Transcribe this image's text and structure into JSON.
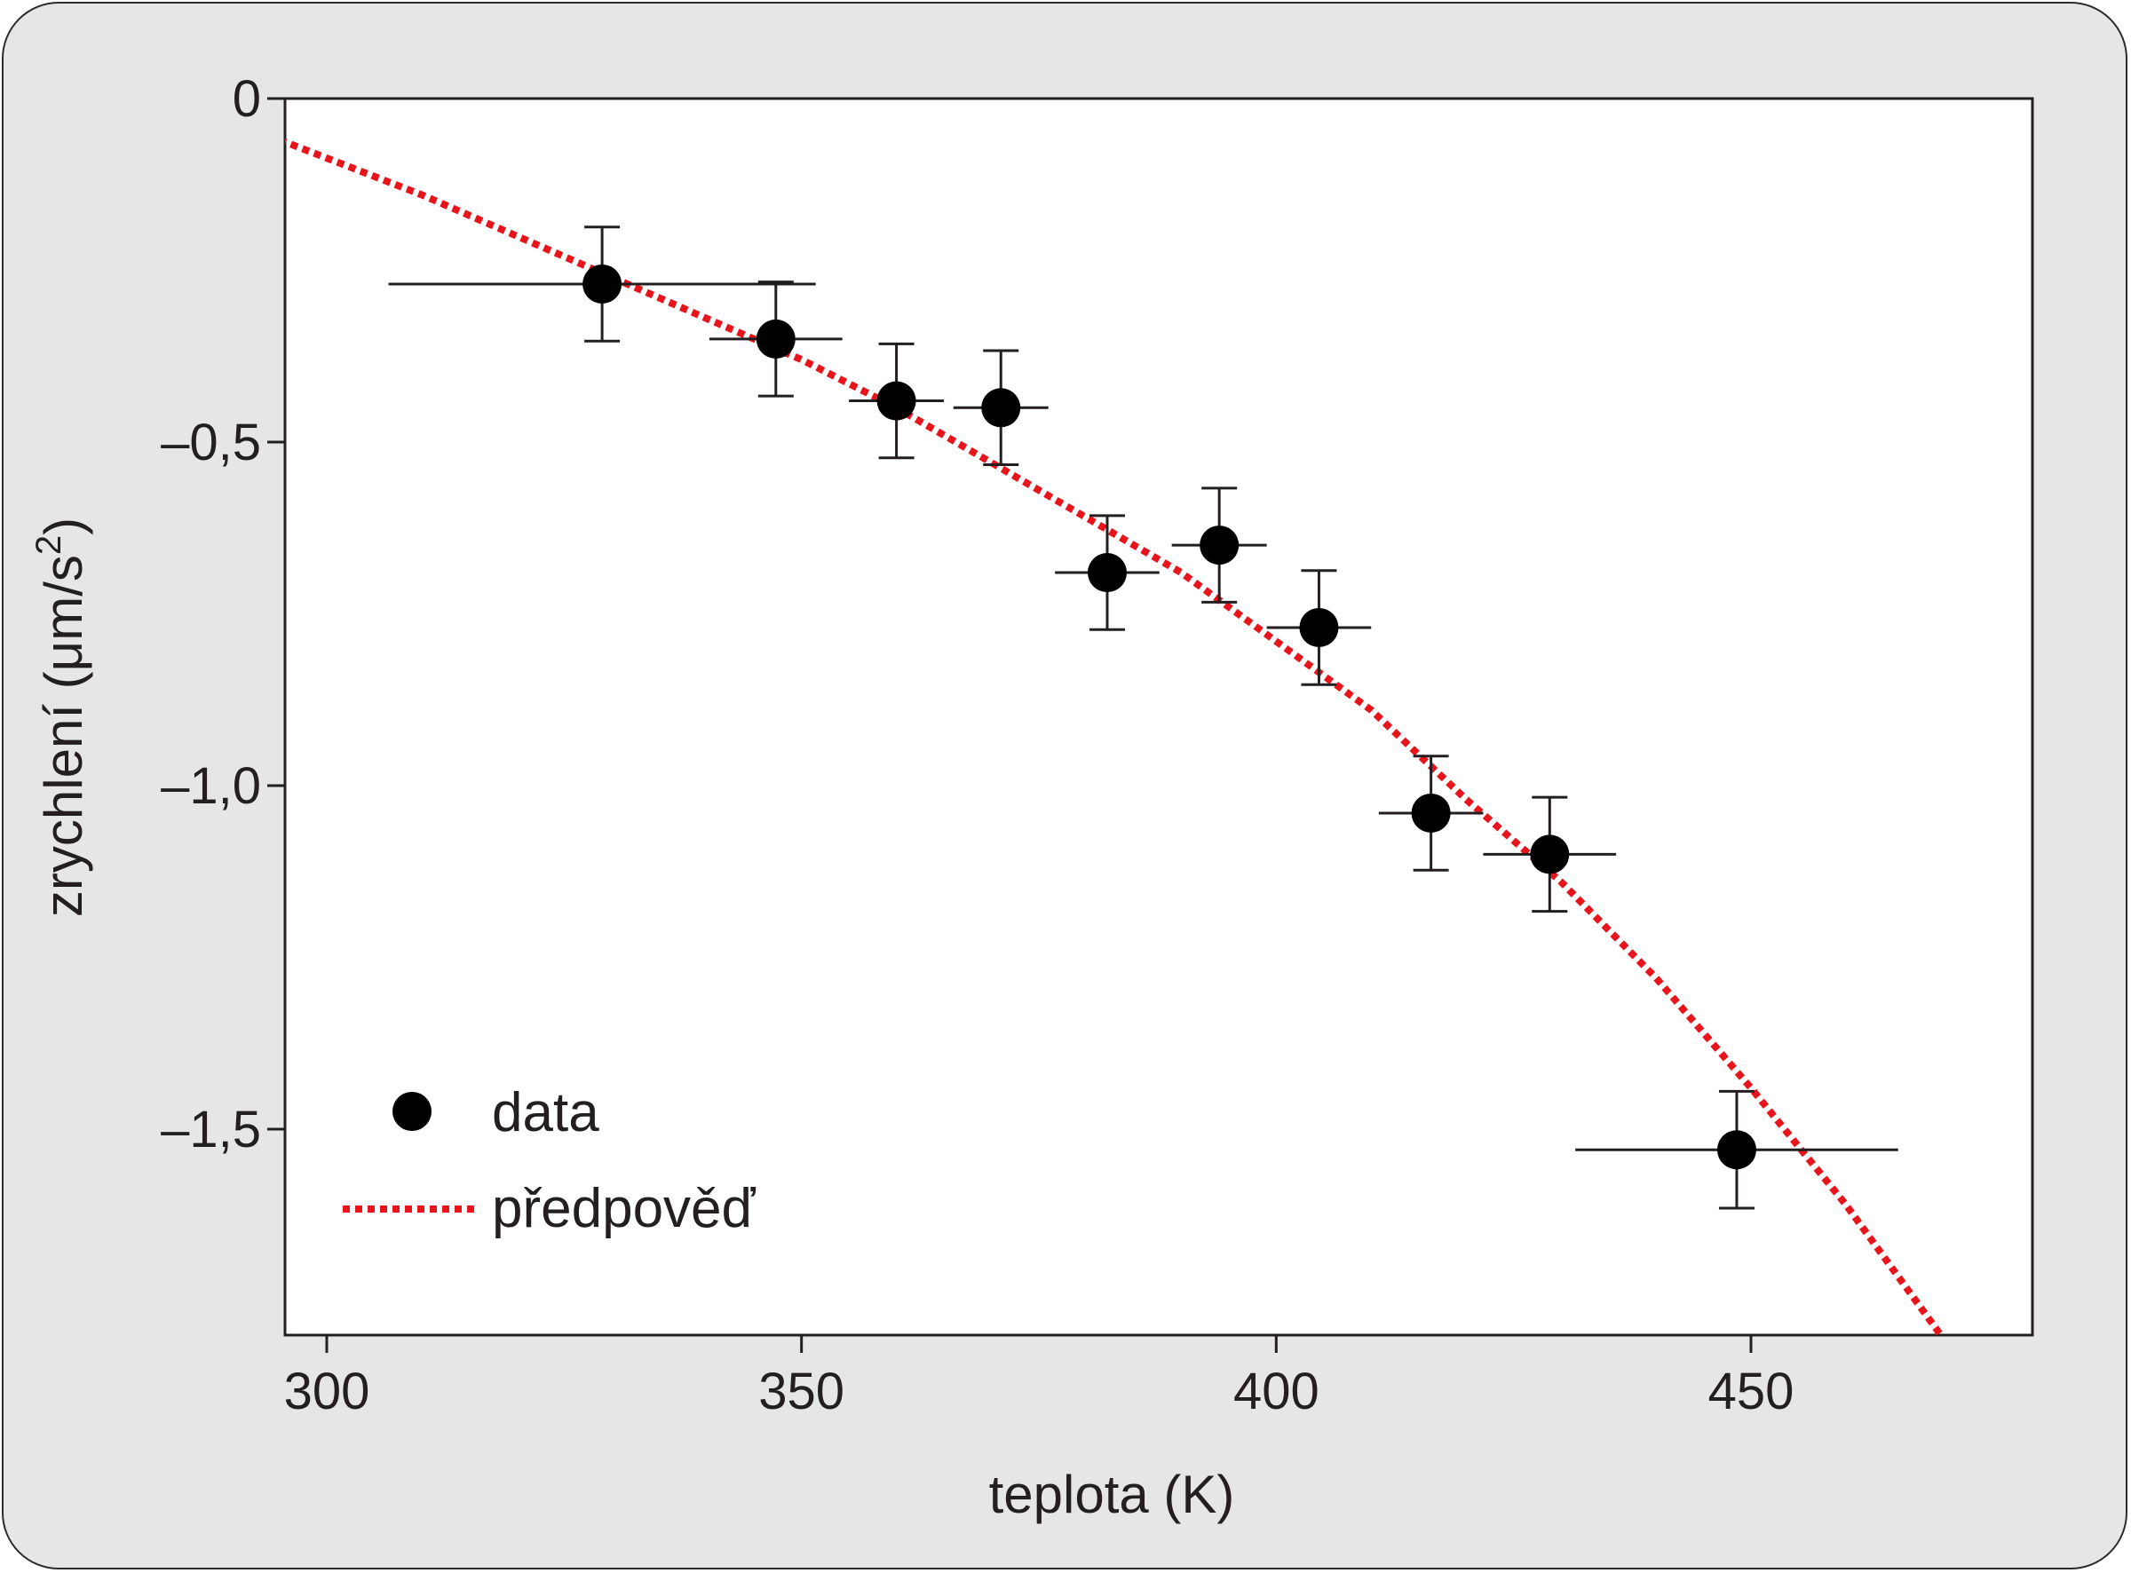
{
  "chart_data": {
    "type": "scatter",
    "xlabel": "teplota (K)",
    "ylabel_main": "zrychlení (μm/s",
    "ylabel_sup": "2",
    "ylabel_close": ")",
    "xlim": [
      295,
      480
    ],
    "ylim": [
      -1.8,
      0
    ],
    "x_ticks": [
      300,
      350,
      400,
      450
    ],
    "x_tick_labels": [
      "300",
      "350",
      "400",
      "450"
    ],
    "y_ticks": [
      0,
      -0.5,
      -1.0,
      -1.5
    ],
    "y_tick_labels": [
      "0",
      "–0,5",
      "–1,0",
      "–1,5"
    ],
    "grid": false,
    "legend_position": "bottom-left",
    "series": [
      {
        "name": "data",
        "kind": "errorbar",
        "color": "#000000",
        "points": [
          {
            "x": 329,
            "y": -0.27,
            "xerr": 22.5,
            "yerr": 0.083
          },
          {
            "x": 347.3,
            "y": -0.35,
            "xerr": 7,
            "yerr": 0.083
          },
          {
            "x": 360,
            "y": -0.44,
            "xerr": 5,
            "yerr": 0.083
          },
          {
            "x": 371,
            "y": -0.45,
            "xerr": 5,
            "yerr": 0.083
          },
          {
            "x": 382.2,
            "y": -0.69,
            "xerr": 5.5,
            "yerr": 0.083
          },
          {
            "x": 394,
            "y": -0.65,
            "xerr": 5,
            "yerr": 0.083
          },
          {
            "x": 404.5,
            "y": -0.77,
            "xerr": 5.5,
            "yerr": 0.083
          },
          {
            "x": 416.3,
            "y": -1.04,
            "xerr": 5.5,
            "yerr": 0.083
          },
          {
            "x": 428.8,
            "y": -1.1,
            "xerr": 7,
            "yerr": 0.083
          },
          {
            "x": 448.5,
            "y": -1.53,
            "xerr": 17,
            "yerr": 0.085
          }
        ]
      },
      {
        "name": "předpověď",
        "kind": "line",
        "style": "dotted",
        "color": "#e8141b",
        "x": [
          295,
          310,
          320,
          330,
          340,
          350,
          360,
          370,
          380,
          390,
          400,
          410,
          420,
          430,
          440,
          450,
          460,
          470
        ],
        "y": [
          -0.06,
          -0.14,
          -0.2,
          -0.26,
          -0.32,
          -0.38,
          -0.45,
          -0.53,
          -0.61,
          -0.69,
          -0.79,
          -0.89,
          -1.02,
          -1.14,
          -1.28,
          -1.44,
          -1.61,
          -1.8
        ]
      }
    ]
  }
}
